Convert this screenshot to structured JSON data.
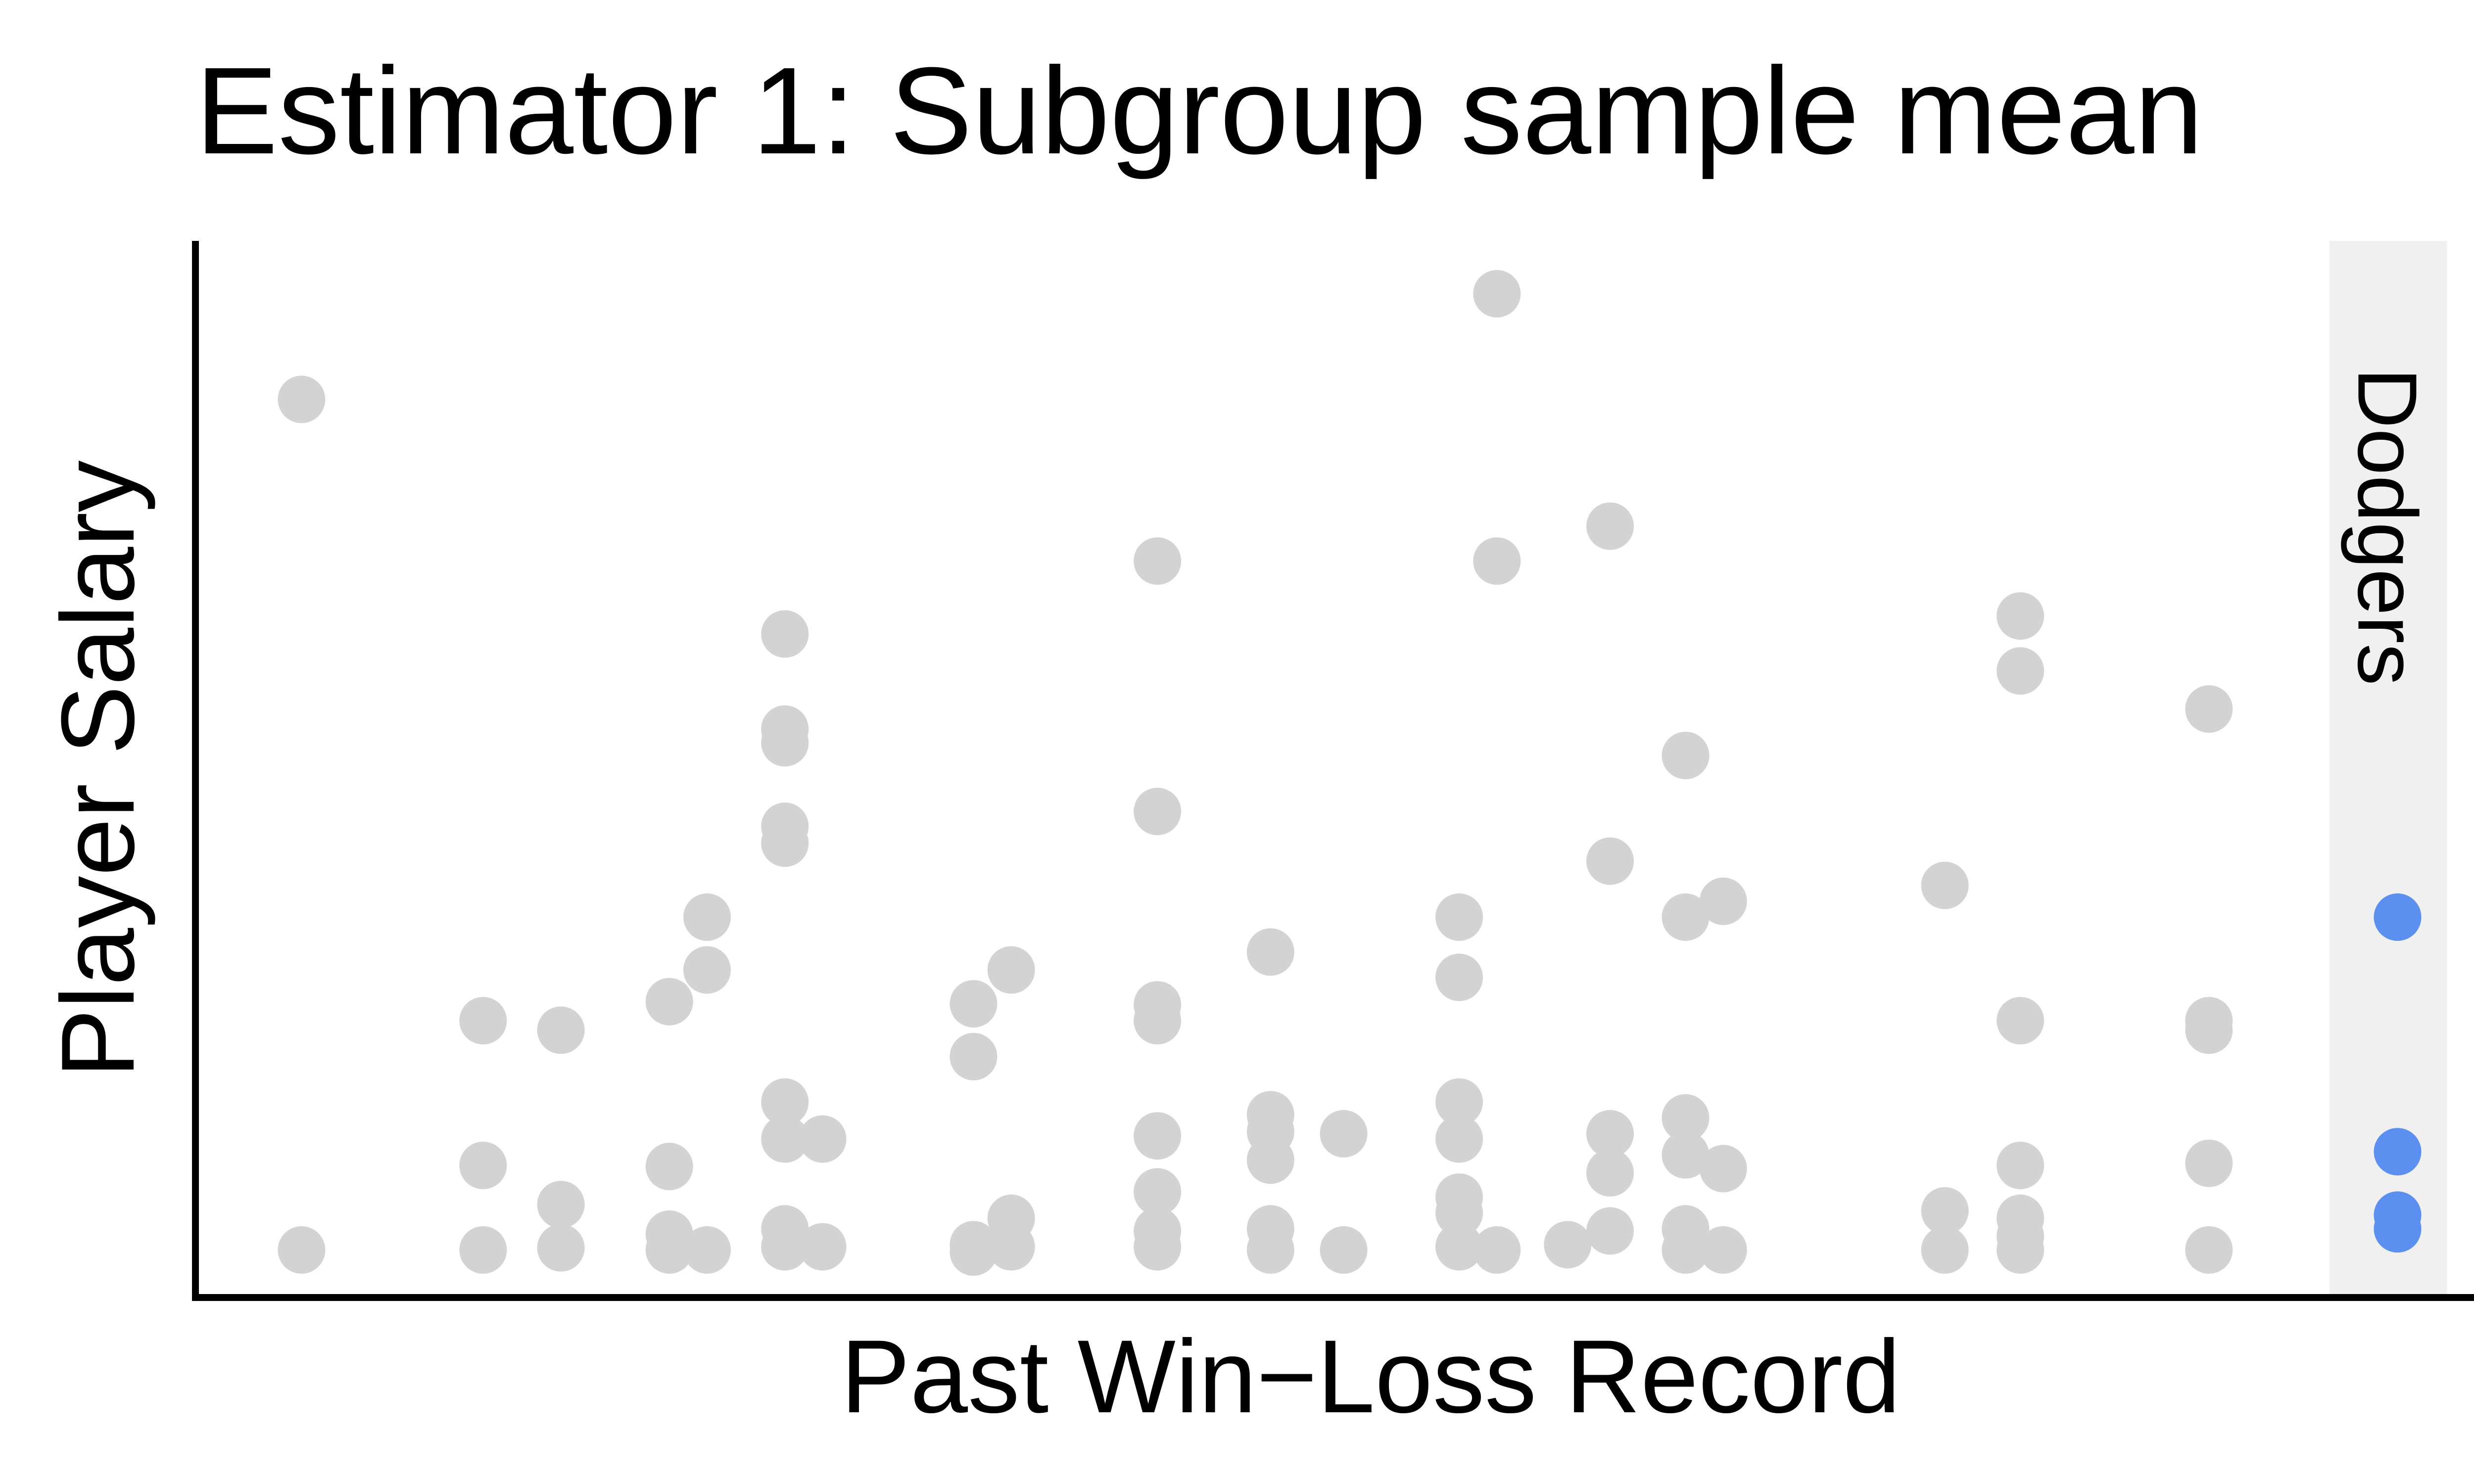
{
  "chart_data": {
    "type": "scatter",
    "title": "Estimator 1: Subgroup sample mean",
    "xlabel": "Past Win−Loss Record",
    "ylabel": "Player Salary",
    "x_ticks": "none",
    "y_ticks": "none",
    "xlim": [
      0,
      1
    ],
    "ylim": [
      0,
      1
    ],
    "grid": false,
    "legend": "none",
    "highlight_band": {
      "label": "Dodgers",
      "x_range": [
        0.905,
        0.955
      ]
    },
    "colors": {
      "other": "#d3d3d3",
      "highlight": "#5b8ff0",
      "band": "#f0f0f0",
      "axis": "#000000"
    },
    "series": [
      {
        "role": "other",
        "points": [
          [
            0.045,
            0.85
          ],
          [
            0.045,
            0.045
          ],
          [
            0.122,
            0.262
          ],
          [
            0.122,
            0.125
          ],
          [
            0.122,
            0.045
          ],
          [
            0.155,
            0.253
          ],
          [
            0.155,
            0.088
          ],
          [
            0.155,
            0.047
          ],
          [
            0.201,
            0.28
          ],
          [
            0.201,
            0.124
          ],
          [
            0.201,
            0.06
          ],
          [
            0.201,
            0.045
          ],
          [
            0.217,
            0.36
          ],
          [
            0.217,
            0.31
          ],
          [
            0.217,
            0.045
          ],
          [
            0.25,
            0.628
          ],
          [
            0.25,
            0.538
          ],
          [
            0.25,
            0.525
          ],
          [
            0.25,
            0.446
          ],
          [
            0.25,
            0.43
          ],
          [
            0.25,
            0.185
          ],
          [
            0.25,
            0.15
          ],
          [
            0.25,
            0.065
          ],
          [
            0.25,
            0.048
          ],
          [
            0.266,
            0.15
          ],
          [
            0.266,
            0.048
          ],
          [
            0.33,
            0.278
          ],
          [
            0.33,
            0.228
          ],
          [
            0.33,
            0.05
          ],
          [
            0.33,
            0.043
          ],
          [
            0.346,
            0.31
          ],
          [
            0.346,
            0.075
          ],
          [
            0.346,
            0.048
          ],
          [
            0.408,
            0.697
          ],
          [
            0.408,
            0.46
          ],
          [
            0.408,
            0.277
          ],
          [
            0.408,
            0.262
          ],
          [
            0.408,
            0.153
          ],
          [
            0.408,
            0.1
          ],
          [
            0.408,
            0.063
          ],
          [
            0.408,
            0.048
          ],
          [
            0.456,
            0.327
          ],
          [
            0.456,
            0.173
          ],
          [
            0.456,
            0.157
          ],
          [
            0.456,
            0.13
          ],
          [
            0.456,
            0.065
          ],
          [
            0.456,
            0.045
          ],
          [
            0.487,
            0.155
          ],
          [
            0.487,
            0.045
          ],
          [
            0.536,
            0.36
          ],
          [
            0.536,
            0.303
          ],
          [
            0.536,
            0.185
          ],
          [
            0.536,
            0.15
          ],
          [
            0.536,
            0.095
          ],
          [
            0.536,
            0.08
          ],
          [
            0.536,
            0.048
          ],
          [
            0.552,
            0.95
          ],
          [
            0.552,
            0.697
          ],
          [
            0.552,
            0.045
          ],
          [
            0.582,
            0.05
          ],
          [
            0.6,
            0.73
          ],
          [
            0.6,
            0.413
          ],
          [
            0.6,
            0.155
          ],
          [
            0.6,
            0.118
          ],
          [
            0.6,
            0.063
          ],
          [
            0.632,
            0.513
          ],
          [
            0.632,
            0.36
          ],
          [
            0.632,
            0.17
          ],
          [
            0.632,
            0.135
          ],
          [
            0.632,
            0.065
          ],
          [
            0.632,
            0.045
          ],
          [
            0.648,
            0.375
          ],
          [
            0.648,
            0.122
          ],
          [
            0.648,
            0.045
          ],
          [
            0.742,
            0.39
          ],
          [
            0.742,
            0.082
          ],
          [
            0.742,
            0.045
          ],
          [
            0.774,
            0.645
          ],
          [
            0.774,
            0.593
          ],
          [
            0.774,
            0.262
          ],
          [
            0.774,
            0.125
          ],
          [
            0.774,
            0.075
          ],
          [
            0.774,
            0.058
          ],
          [
            0.774,
            0.045
          ],
          [
            0.854,
            0.557
          ],
          [
            0.854,
            0.262
          ],
          [
            0.854,
            0.253
          ],
          [
            0.854,
            0.127
          ],
          [
            0.854,
            0.045
          ]
        ]
      },
      {
        "name": "Dodgers",
        "role": "highlight",
        "points": [
          [
            0.934,
            0.36
          ],
          [
            0.934,
            0.138
          ],
          [
            0.934,
            0.078
          ],
          [
            0.934,
            0.065
          ]
        ]
      }
    ]
  }
}
